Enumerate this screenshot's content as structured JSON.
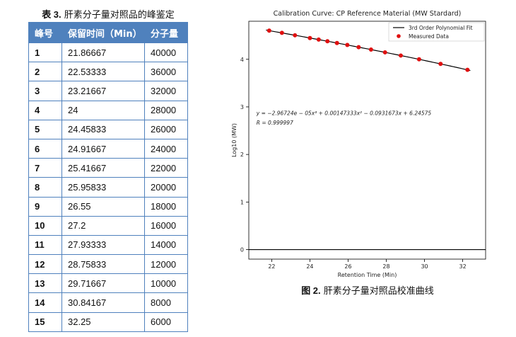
{
  "table": {
    "caption_number": "表 3.",
    "caption_text": " 肝素分子量对照品的峰鉴定",
    "headers": [
      "峰号",
      "保留时间（Min）",
      "分子量"
    ],
    "rows": [
      [
        "1",
        "21.86667",
        "40000"
      ],
      [
        "2",
        "22.53333",
        "36000"
      ],
      [
        "3",
        "23.21667",
        "32000"
      ],
      [
        "4",
        "24",
        "28000"
      ],
      [
        "5",
        "24.45833",
        "26000"
      ],
      [
        "6",
        "24.91667",
        "24000"
      ],
      [
        "7",
        "25.41667",
        "22000"
      ],
      [
        "8",
        "25.95833",
        "20000"
      ],
      [
        "9",
        "26.55",
        "18000"
      ],
      [
        "10",
        "27.2",
        "16000"
      ],
      [
        "11",
        "27.93333",
        "14000"
      ],
      [
        "12",
        "28.75833",
        "12000"
      ],
      [
        "13",
        "29.71667",
        "10000"
      ],
      [
        "14",
        "30.84167",
        "8000"
      ],
      [
        "15",
        "32.25",
        "6000"
      ]
    ]
  },
  "figure": {
    "caption_number": "图 2.",
    "caption_text": " 肝素分子量对照品校准曲线"
  },
  "chart_data": {
    "type": "scatter",
    "title": "Calibration Curve: CP Reference Material (MW Stardard)",
    "xlabel": "Retention Time (Min)",
    "ylabel": "Log10 (MW)",
    "xlim": [
      20.8,
      33.2
    ],
    "ylim": [
      -0.2,
      4.8
    ],
    "xticks": [
      "22",
      "24",
      "26",
      "28",
      "30",
      "32"
    ],
    "yticks": [
      "0",
      "1",
      "2",
      "3",
      "4"
    ],
    "zero_line": true,
    "legend": {
      "position": "top-right",
      "entries": [
        "3rd Order Polynomial Fit",
        "Measured Data"
      ]
    },
    "equation": "y = −2.96724e − 05x³ + 0.00147333x² − 0.0931673x + 6.24575",
    "r_value": "R = 0.999997",
    "fit_coefficients": [
      -2.96724e-05,
      0.00147333,
      -0.0931673,
      6.24575
    ],
    "fit_range": [
      21.7,
      32.4
    ],
    "colors": {
      "fit": "#000000",
      "points": "#e01010"
    },
    "series": [
      {
        "name": "Measured Data",
        "x": [
          21.86667,
          22.53333,
          23.21667,
          24,
          24.45833,
          24.91667,
          25.41667,
          25.95833,
          26.55,
          27.2,
          27.93333,
          28.75833,
          29.71667,
          30.84167,
          32.25
        ],
        "y": [
          4.60206,
          4.5563,
          4.50515,
          4.44716,
          4.41497,
          4.38021,
          4.34242,
          4.30103,
          4.25527,
          4.20412,
          4.14613,
          4.07918,
          4.0,
          3.90309,
          3.77815
        ]
      }
    ]
  }
}
